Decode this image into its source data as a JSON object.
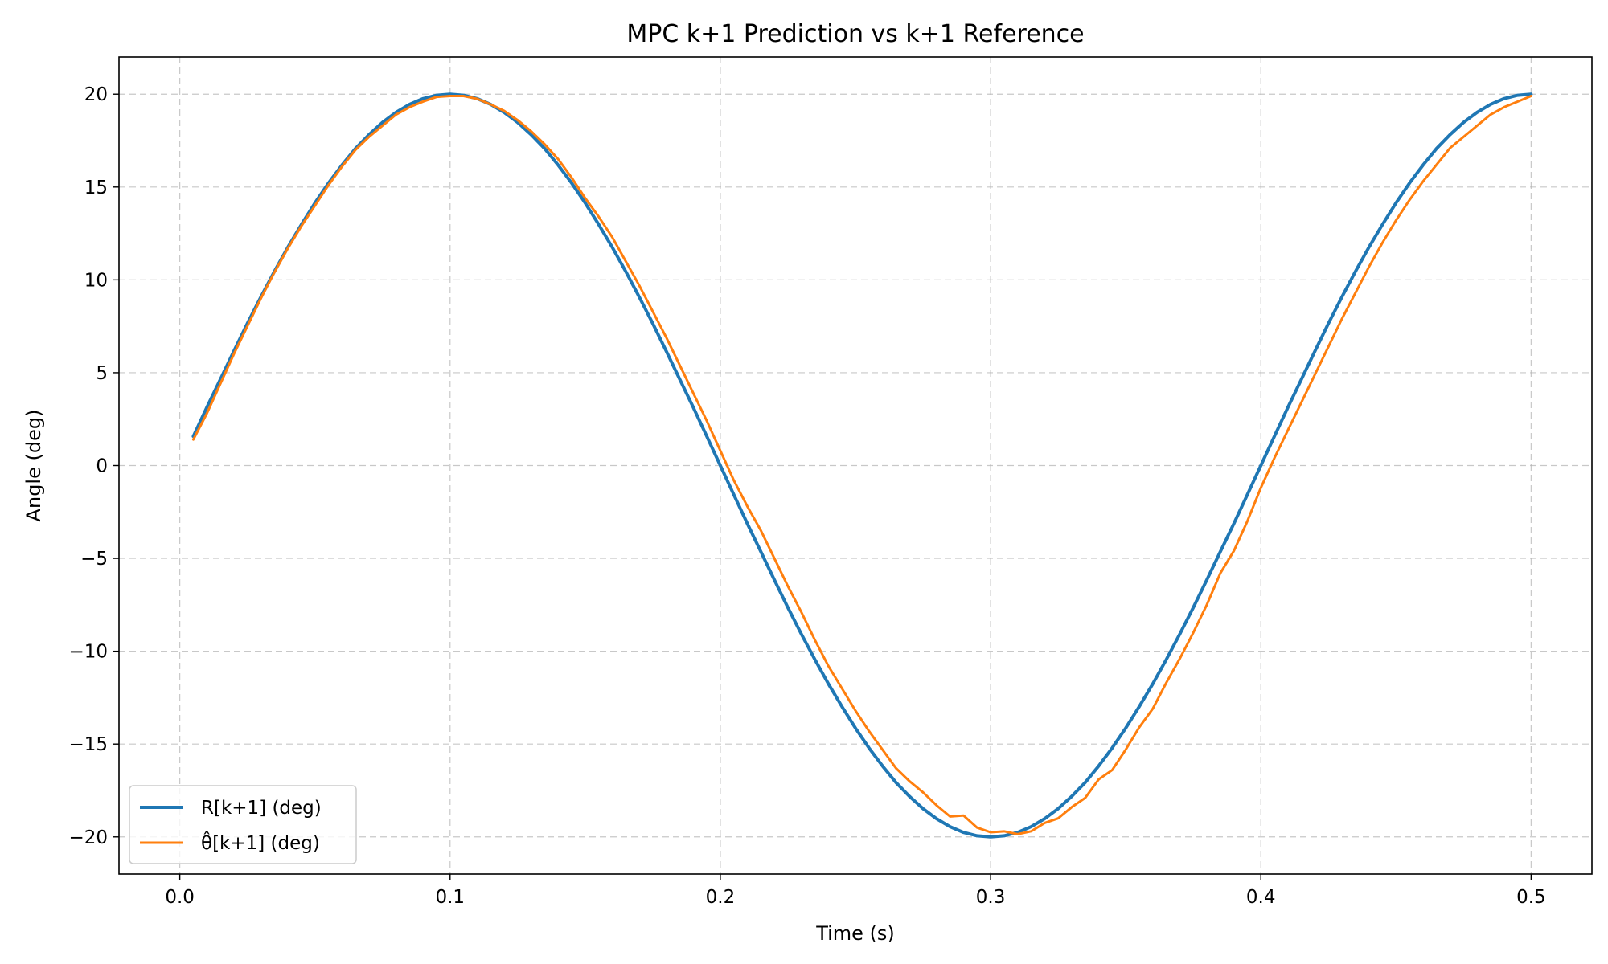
{
  "chart_data": {
    "type": "line",
    "title": "MPC k+1 Prediction vs k+1 Reference",
    "xlabel": "Time (s)",
    "ylabel": "Angle (deg)",
    "xlim": [
      -0.0225,
      0.5225
    ],
    "ylim": [
      -22,
      22
    ],
    "xticks": [
      0.0,
      0.1,
      0.2,
      0.3,
      0.4,
      0.5
    ],
    "xtick_labels": [
      "0.0",
      "0.1",
      "0.2",
      "0.3",
      "0.4",
      "0.5"
    ],
    "yticks": [
      20,
      15,
      10,
      5,
      0,
      -5,
      -10,
      -15,
      -20
    ],
    "ytick_labels": [
      "20",
      "15",
      "10",
      "5",
      "0",
      "−5",
      "−10",
      "−15",
      "−20"
    ],
    "grid": true,
    "legend_position": "lower-left",
    "series": [
      {
        "name": "R[k+1] (deg)",
        "color": "#1f77b4",
        "x": [
          0.005,
          0.01,
          0.015,
          0.02,
          0.025,
          0.03,
          0.035,
          0.04,
          0.045,
          0.05,
          0.055,
          0.06,
          0.065,
          0.07,
          0.075,
          0.08,
          0.085,
          0.09,
          0.095,
          0.1,
          0.105,
          0.11,
          0.115,
          0.12,
          0.125,
          0.13,
          0.135,
          0.14,
          0.145,
          0.15,
          0.155,
          0.16,
          0.165,
          0.17,
          0.175,
          0.18,
          0.185,
          0.19,
          0.195,
          0.2,
          0.205,
          0.21,
          0.215,
          0.22,
          0.225,
          0.23,
          0.235,
          0.24,
          0.245,
          0.25,
          0.255,
          0.26,
          0.265,
          0.27,
          0.275,
          0.28,
          0.285,
          0.29,
          0.295,
          0.3,
          0.305,
          0.31,
          0.315,
          0.32,
          0.325,
          0.33,
          0.335,
          0.34,
          0.345,
          0.35,
          0.355,
          0.36,
          0.365,
          0.37,
          0.375,
          0.38,
          0.385,
          0.39,
          0.395,
          0.4,
          0.405,
          0.41,
          0.415,
          0.42,
          0.425,
          0.43,
          0.435,
          0.44,
          0.445,
          0.45,
          0.455,
          0.46,
          0.465,
          0.47,
          0.475,
          0.48,
          0.485,
          0.49,
          0.495,
          0.5
        ],
        "y": [
          1.57,
          3.13,
          4.64,
          6.16,
          7.65,
          9.08,
          10.45,
          11.76,
          12.98,
          14.14,
          15.21,
          16.18,
          17.07,
          17.82,
          18.48,
          19.02,
          19.45,
          19.76,
          19.94,
          20.0,
          19.94,
          19.76,
          19.45,
          19.02,
          18.48,
          17.82,
          17.07,
          16.18,
          15.21,
          14.14,
          12.98,
          11.76,
          10.45,
          9.08,
          7.65,
          6.16,
          4.64,
          3.13,
          1.57,
          0.0,
          -1.57,
          -3.13,
          -4.64,
          -6.16,
          -7.65,
          -9.08,
          -10.45,
          -11.76,
          -12.98,
          -14.14,
          -15.21,
          -16.18,
          -17.07,
          -17.82,
          -18.48,
          -19.02,
          -19.45,
          -19.76,
          -19.94,
          -20.0,
          -19.94,
          -19.76,
          -19.45,
          -19.02,
          -18.48,
          -17.82,
          -17.07,
          -16.18,
          -15.21,
          -14.14,
          -12.98,
          -11.76,
          -10.45,
          -9.08,
          -7.65,
          -6.16,
          -4.64,
          -3.13,
          -1.57,
          0.0,
          1.57,
          3.13,
          4.64,
          6.16,
          7.65,
          9.08,
          10.45,
          11.76,
          12.98,
          14.14,
          15.21,
          16.18,
          17.07,
          17.82,
          18.48,
          19.02,
          19.45,
          19.76,
          19.94,
          20.0
        ]
      },
      {
        "name": "θ̂[k+1] (deg)",
        "color": "#ff7f0e",
        "x": [
          0.005,
          0.01,
          0.015,
          0.02,
          0.025,
          0.03,
          0.035,
          0.04,
          0.045,
          0.05,
          0.055,
          0.06,
          0.065,
          0.07,
          0.075,
          0.08,
          0.085,
          0.09,
          0.095,
          0.1,
          0.105,
          0.11,
          0.115,
          0.12,
          0.125,
          0.13,
          0.135,
          0.14,
          0.145,
          0.15,
          0.155,
          0.16,
          0.165,
          0.17,
          0.175,
          0.18,
          0.185,
          0.19,
          0.195,
          0.2,
          0.205,
          0.21,
          0.215,
          0.22,
          0.225,
          0.23,
          0.235,
          0.24,
          0.245,
          0.25,
          0.255,
          0.26,
          0.265,
          0.27,
          0.275,
          0.28,
          0.285,
          0.29,
          0.295,
          0.3,
          0.305,
          0.31,
          0.315,
          0.32,
          0.325,
          0.33,
          0.335,
          0.34,
          0.345,
          0.35,
          0.355,
          0.36,
          0.365,
          0.37,
          0.375,
          0.38,
          0.385,
          0.39,
          0.395,
          0.4,
          0.405,
          0.41,
          0.415,
          0.42,
          0.425,
          0.43,
          0.435,
          0.44,
          0.445,
          0.45,
          0.455,
          0.46,
          0.465,
          0.47,
          0.475,
          0.48,
          0.485,
          0.49,
          0.495,
          0.5
        ],
        "y": [
          1.4,
          2.8,
          4.4,
          6.0,
          7.5,
          9.0,
          10.4,
          11.7,
          12.9,
          14.0,
          15.1,
          16.1,
          17.0,
          17.7,
          18.3,
          18.9,
          19.3,
          19.6,
          19.85,
          19.9,
          19.9,
          19.75,
          19.45,
          19.1,
          18.6,
          18.0,
          17.3,
          16.5,
          15.5,
          14.4,
          13.4,
          12.3,
          11.0,
          9.7,
          8.3,
          6.9,
          5.4,
          3.9,
          2.4,
          0.8,
          -0.8,
          -2.2,
          -3.5,
          -5.0,
          -6.5,
          -7.9,
          -9.4,
          -10.8,
          -12.0,
          -13.2,
          -14.3,
          -15.3,
          -16.3,
          -17.0,
          -17.6,
          -18.3,
          -18.9,
          -18.85,
          -19.5,
          -19.75,
          -19.7,
          -19.85,
          -19.7,
          -19.25,
          -19.0,
          -18.4,
          -17.9,
          -16.9,
          -16.4,
          -15.3,
          -14.1,
          -13.1,
          -11.7,
          -10.4,
          -9.0,
          -7.5,
          -5.8,
          -4.6,
          -3.0,
          -1.2,
          0.4,
          1.9,
          3.4,
          4.9,
          6.4,
          7.9,
          9.3,
          10.7,
          12.0,
          13.2,
          14.3,
          15.3,
          16.2,
          17.1,
          17.7,
          18.3,
          18.9,
          19.3,
          19.6,
          19.9
        ]
      }
    ]
  }
}
